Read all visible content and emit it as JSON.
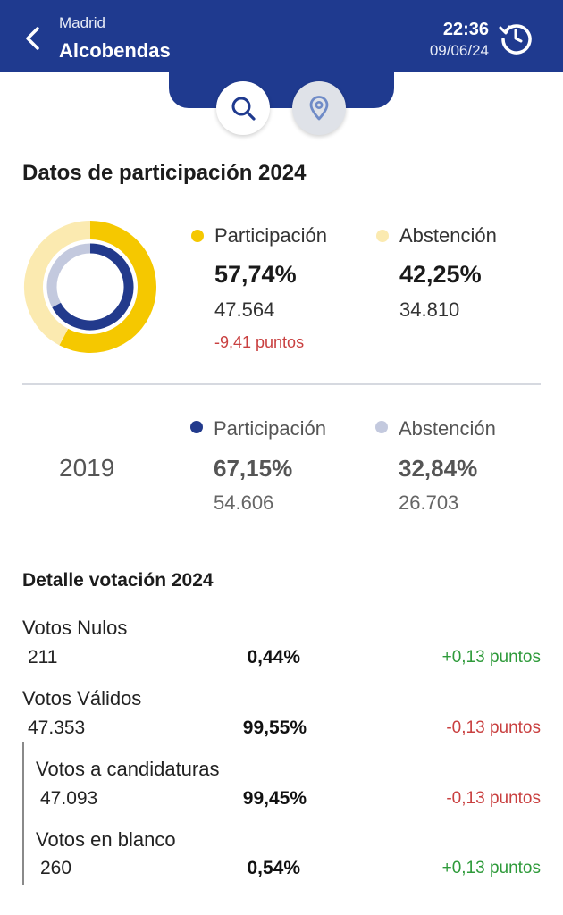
{
  "header": {
    "region": "Madrid",
    "city": "Alcobendas",
    "time": "22:36",
    "date": "09/06/24"
  },
  "participation_title": "Datos de participación 2024",
  "current": {
    "chart_data": {
      "type": "pie",
      "categories": [
        "Participación",
        "Abstención"
      ],
      "values": [
        57.74,
        42.25
      ],
      "previous_values": [
        67.15,
        32.84
      ]
    },
    "participation": {
      "label": "Participación",
      "pct": "57,74%",
      "count": "47.564",
      "delta": "-9,41 puntos"
    },
    "abstention": {
      "label": "Abstención",
      "pct": "42,25%",
      "count": "34.810"
    }
  },
  "previous": {
    "year": "2019",
    "participation": {
      "label": "Participación",
      "pct": "67,15%",
      "count": "54.606"
    },
    "abstention": {
      "label": "Abstención",
      "pct": "32,84%",
      "count": "26.703"
    }
  },
  "detail_title": "Detalle votación 2024",
  "detail_rows": [
    {
      "label": "Votos Nulos",
      "count": "211",
      "pct": "0,44%",
      "delta": "+0,13 puntos"
    },
    {
      "label": "Votos Válidos",
      "count": "47.353",
      "pct": "99,55%",
      "delta": "-0,13 puntos"
    },
    {
      "label": "Votos a candidaturas",
      "count": "47.093",
      "pct": "99,45%",
      "delta": "-0,13 puntos"
    },
    {
      "label": "Votos en blanco",
      "count": "260",
      "pct": "0,54%",
      "delta": "+0,13 puntos"
    }
  ],
  "colors": {
    "brand": "#1f3a8f",
    "participation_2024": "#f5c800",
    "abstention_2024": "#fbeab0",
    "participation_2019": "#223a8c",
    "abstention_2019": "#c3c9de",
    "positive": "#2e9a3a",
    "negative": "#c94040"
  },
  "icons": [
    "back-arrow-icon",
    "history-refresh-icon",
    "search-icon",
    "location-pin-icon"
  ]
}
